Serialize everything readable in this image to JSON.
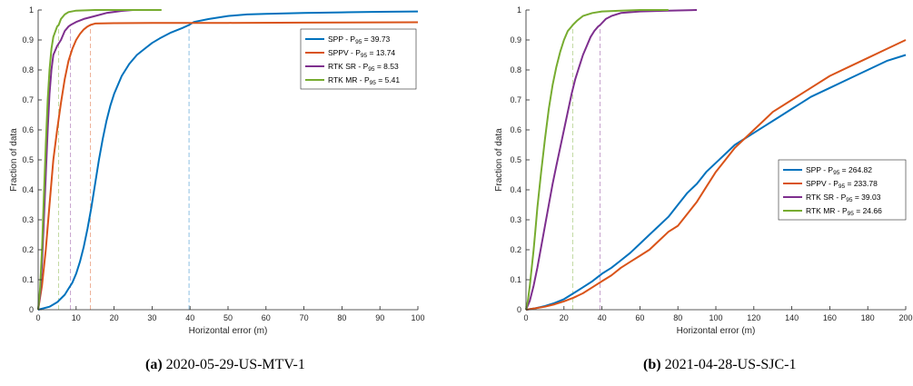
{
  "chart_data": [
    {
      "type": "line",
      "xlabel": "Horizontal error (m)",
      "ylabel": "Fraction of data",
      "xlim": [
        0,
        100
      ],
      "ylim": [
        0,
        1
      ],
      "xticks": [
        0,
        10,
        20,
        30,
        40,
        50,
        60,
        70,
        80,
        90,
        100
      ],
      "yticks": [
        0,
        0.1,
        0.2,
        0.3,
        0.4,
        0.5,
        0.6,
        0.7,
        0.8,
        0.9,
        1
      ],
      "grid": false,
      "legend_position": "top-right",
      "caption_label": "(a)",
      "caption_text": "2020-05-29-US-MTV-1",
      "series": [
        {
          "name": "SPP",
          "p95": "39.73",
          "color": "#0072BD",
          "points": [
            [
              0,
              0
            ],
            [
              3,
              0.01
            ],
            [
              5,
              0.025
            ],
            [
              7,
              0.05
            ],
            [
              8,
              0.07
            ],
            [
              9,
              0.09
            ],
            [
              10,
              0.12
            ],
            [
              11,
              0.16
            ],
            [
              12,
              0.21
            ],
            [
              13,
              0.27
            ],
            [
              14,
              0.34
            ],
            [
              15,
              0.42
            ],
            [
              16,
              0.5
            ],
            [
              17,
              0.57
            ],
            [
              18,
              0.63
            ],
            [
              19,
              0.68
            ],
            [
              20,
              0.72
            ],
            [
              22,
              0.78
            ],
            [
              24,
              0.82
            ],
            [
              26,
              0.85
            ],
            [
              28,
              0.87
            ],
            [
              30,
              0.89
            ],
            [
              32,
              0.905
            ],
            [
              35,
              0.925
            ],
            [
              38,
              0.94
            ],
            [
              39.73,
              0.95
            ],
            [
              41,
              0.96
            ],
            [
              45,
              0.97
            ],
            [
              50,
              0.98
            ],
            [
              55,
              0.985
            ],
            [
              60,
              0.987
            ],
            [
              70,
              0.99
            ],
            [
              80,
              0.992
            ],
            [
              90,
              0.994
            ],
            [
              100,
              0.995
            ]
          ]
        },
        {
          "name": "SPPV",
          "p95": "13.74",
          "color": "#D95319",
          "points": [
            [
              0,
              0
            ],
            [
              1,
              0.08
            ],
            [
              2,
              0.2
            ],
            [
              3,
              0.35
            ],
            [
              4,
              0.5
            ],
            [
              5,
              0.6
            ],
            [
              6,
              0.69
            ],
            [
              7,
              0.77
            ],
            [
              8,
              0.83
            ],
            [
              9,
              0.87
            ],
            [
              10,
              0.9
            ],
            [
              11,
              0.92
            ],
            [
              12,
              0.935
            ],
            [
              13,
              0.945
            ],
            [
              13.74,
              0.95
            ],
            [
              15,
              0.955
            ],
            [
              20,
              0.956
            ],
            [
              30,
              0.957
            ],
            [
              50,
              0.957
            ],
            [
              70,
              0.958
            ],
            [
              100,
              0.959
            ]
          ]
        },
        {
          "name": "RTK SR",
          "p95": "8.53",
          "color": "#7E2F8E",
          "points": [
            [
              0,
              0
            ],
            [
              0.5,
              0.05
            ],
            [
              1,
              0.15
            ],
            [
              1.5,
              0.3
            ],
            [
              2,
              0.45
            ],
            [
              2.5,
              0.6
            ],
            [
              3,
              0.72
            ],
            [
              3.5,
              0.8
            ],
            [
              4,
              0.85
            ],
            [
              5,
              0.88
            ],
            [
              6,
              0.9
            ],
            [
              7,
              0.93
            ],
            [
              8,
              0.945
            ],
            [
              8.53,
              0.95
            ],
            [
              10,
              0.96
            ],
            [
              12,
              0.97
            ],
            [
              15,
              0.98
            ],
            [
              18,
              0.99
            ],
            [
              22,
              0.997
            ],
            [
              25,
              1
            ]
          ]
        },
        {
          "name": "RTK MR",
          "p95": "5.41",
          "color": "#77AC30",
          "points": [
            [
              0,
              0
            ],
            [
              0.5,
              0.07
            ],
            [
              1,
              0.2
            ],
            [
              1.5,
              0.38
            ],
            [
              2,
              0.55
            ],
            [
              2.5,
              0.7
            ],
            [
              3,
              0.8
            ],
            [
              3.5,
              0.87
            ],
            [
              4,
              0.91
            ],
            [
              5,
              0.945
            ],
            [
              5.41,
              0.95
            ],
            [
              6,
              0.97
            ],
            [
              7,
              0.985
            ],
            [
              8,
              0.993
            ],
            [
              10,
              0.998
            ],
            [
              15,
              1
            ],
            [
              20,
              1
            ],
            [
              25,
              1
            ],
            [
              32.5,
              1
            ]
          ]
        }
      ]
    },
    {
      "type": "line",
      "xlabel": "Horizontal error (m)",
      "ylabel": "Fraction of data",
      "xlim": [
        0,
        200
      ],
      "ylim": [
        0,
        1
      ],
      "xticks": [
        0,
        20,
        40,
        60,
        80,
        100,
        120,
        140,
        160,
        180,
        200
      ],
      "yticks": [
        0,
        0.1,
        0.2,
        0.3,
        0.4,
        0.5,
        0.6,
        0.7,
        0.8,
        0.9,
        1
      ],
      "grid": false,
      "legend_position": "middle-right",
      "caption_label": "(b)",
      "caption_text": "2021-04-28-US-SJC-1",
      "series": [
        {
          "name": "SPP",
          "p95": "264.82",
          "color": "#0072BD",
          "points": [
            [
              0,
              0
            ],
            [
              5,
              0.005
            ],
            [
              10,
              0.012
            ],
            [
              15,
              0.022
            ],
            [
              20,
              0.035
            ],
            [
              25,
              0.055
            ],
            [
              30,
              0.075
            ],
            [
              35,
              0.095
            ],
            [
              40,
              0.12
            ],
            [
              45,
              0.14
            ],
            [
              50,
              0.165
            ],
            [
              55,
              0.19
            ],
            [
              60,
              0.22
            ],
            [
              65,
              0.25
            ],
            [
              70,
              0.28
            ],
            [
              75,
              0.31
            ],
            [
              80,
              0.35
            ],
            [
              85,
              0.39
            ],
            [
              90,
              0.42
            ],
            [
              95,
              0.46
            ],
            [
              100,
              0.49
            ],
            [
              105,
              0.52
            ],
            [
              110,
              0.55
            ],
            [
              115,
              0.57
            ],
            [
              120,
              0.59
            ],
            [
              125,
              0.61
            ],
            [
              130,
              0.63
            ],
            [
              135,
              0.65
            ],
            [
              140,
              0.67
            ],
            [
              145,
              0.69
            ],
            [
              150,
              0.71
            ],
            [
              160,
              0.74
            ],
            [
              170,
              0.77
            ],
            [
              180,
              0.8
            ],
            [
              190,
              0.83
            ],
            [
              200,
              0.85
            ]
          ]
        },
        {
          "name": "SPPV",
          "p95": "233.78",
          "color": "#D95319",
          "points": [
            [
              0,
              0
            ],
            [
              5,
              0.005
            ],
            [
              10,
              0.01
            ],
            [
              15,
              0.018
            ],
            [
              20,
              0.028
            ],
            [
              25,
              0.04
            ],
            [
              30,
              0.055
            ],
            [
              35,
              0.075
            ],
            [
              40,
              0.095
            ],
            [
              45,
              0.115
            ],
            [
              50,
              0.14
            ],
            [
              55,
              0.16
            ],
            [
              60,
              0.18
            ],
            [
              65,
              0.2
            ],
            [
              70,
              0.23
            ],
            [
              75,
              0.26
            ],
            [
              80,
              0.28
            ],
            [
              85,
              0.32
            ],
            [
              90,
              0.36
            ],
            [
              95,
              0.41
            ],
            [
              100,
              0.46
            ],
            [
              105,
              0.5
            ],
            [
              110,
              0.54
            ],
            [
              115,
              0.57
            ],
            [
              120,
              0.6
            ],
            [
              125,
              0.63
            ],
            [
              130,
              0.66
            ],
            [
              140,
              0.7
            ],
            [
              150,
              0.74
            ],
            [
              160,
              0.78
            ],
            [
              170,
              0.81
            ],
            [
              180,
              0.84
            ],
            [
              190,
              0.87
            ],
            [
              200,
              0.9
            ]
          ]
        },
        {
          "name": "RTK SR",
          "p95": "39.03",
          "color": "#7E2F8E",
          "points": [
            [
              0,
              0
            ],
            [
              2,
              0.03
            ],
            [
              4,
              0.08
            ],
            [
              6,
              0.14
            ],
            [
              8,
              0.21
            ],
            [
              10,
              0.28
            ],
            [
              12,
              0.35
            ],
            [
              14,
              0.42
            ],
            [
              16,
              0.48
            ],
            [
              18,
              0.54
            ],
            [
              20,
              0.6
            ],
            [
              22,
              0.66
            ],
            [
              24,
              0.72
            ],
            [
              26,
              0.77
            ],
            [
              28,
              0.81
            ],
            [
              30,
              0.85
            ],
            [
              32,
              0.88
            ],
            [
              34,
              0.91
            ],
            [
              36,
              0.93
            ],
            [
              38,
              0.945
            ],
            [
              39.03,
              0.95
            ],
            [
              42,
              0.97
            ],
            [
              45,
              0.98
            ],
            [
              50,
              0.99
            ],
            [
              60,
              0.995
            ],
            [
              75,
              0.998
            ],
            [
              90,
              1
            ]
          ]
        },
        {
          "name": "RTK MR",
          "p95": "24.66",
          "color": "#77AC30",
          "points": [
            [
              0,
              0
            ],
            [
              1,
              0.03
            ],
            [
              2,
              0.08
            ],
            [
              3,
              0.14
            ],
            [
              4,
              0.2
            ],
            [
              5,
              0.27
            ],
            [
              6,
              0.34
            ],
            [
              8,
              0.46
            ],
            [
              10,
              0.57
            ],
            [
              12,
              0.67
            ],
            [
              14,
              0.75
            ],
            [
              16,
              0.81
            ],
            [
              18,
              0.86
            ],
            [
              20,
              0.9
            ],
            [
              22,
              0.93
            ],
            [
              24,
              0.945
            ],
            [
              24.66,
              0.95
            ],
            [
              27,
              0.965
            ],
            [
              30,
              0.98
            ],
            [
              35,
              0.99
            ],
            [
              40,
              0.995
            ],
            [
              50,
              0.998
            ],
            [
              60,
              1
            ],
            [
              75,
              1
            ]
          ]
        }
      ]
    }
  ]
}
